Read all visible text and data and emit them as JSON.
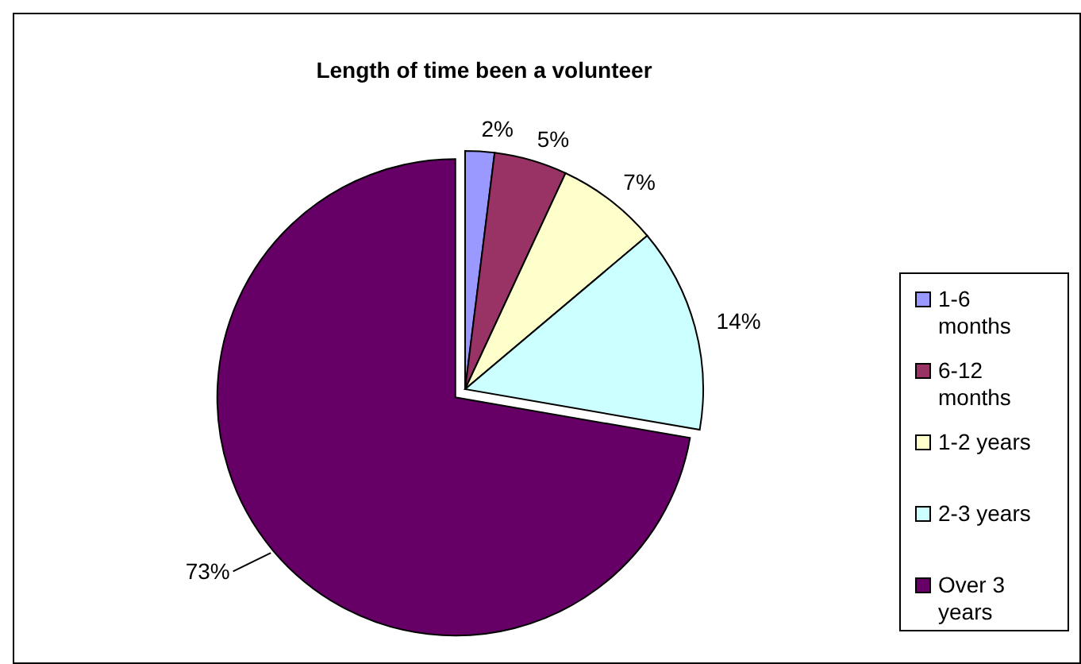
{
  "chart_data": {
    "type": "pie",
    "title": "Length of time been a volunteer",
    "categories": [
      "1-6 months",
      "6-12 months",
      "1-2 years",
      "2-3 years",
      "Over 3 years"
    ],
    "values": [
      2,
      5,
      7,
      14,
      73
    ],
    "colors": [
      "#9999ff",
      "#993366",
      "#ffffcc",
      "#ccffff",
      "#660066"
    ],
    "value_labels": [
      "2%",
      "5%",
      "7%",
      "14%",
      "73%"
    ],
    "legend": "right"
  }
}
